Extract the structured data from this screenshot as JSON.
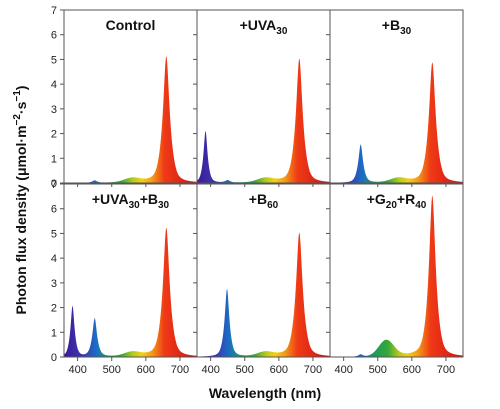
{
  "figure": {
    "xlabel": "Wavelength (nm)",
    "ylabel_parts": [
      "Photon flux density (μmol·m",
      "−2",
      "·s",
      "−1",
      ")"
    ]
  },
  "chart_data": {
    "type": "area",
    "layout": "2 rows x 3 columns of small multiples, shared axes",
    "x_unit": "nm",
    "y_unit": "μmol·m−2·s−1",
    "xlim": [
      360,
      750
    ],
    "ylim": [
      0,
      7
    ],
    "x_ticks": [
      400,
      500,
      600,
      700
    ],
    "y_ticks": [
      0,
      1,
      2,
      3,
      4,
      5,
      6,
      7
    ],
    "fill": "spectral rainbow gradient (violet → blue → green → yellow → orange → red)",
    "grid": false,
    "panels": [
      {
        "title_parts": [
          {
            "t": "Control",
            "sub": false
          }
        ],
        "peaks": [
          {
            "nm": 450,
            "value": 0.1
          },
          {
            "nm": 560,
            "value": 0.15
          },
          {
            "nm": 660,
            "value": 5.1
          }
        ]
      },
      {
        "title_parts": [
          {
            "t": "+UVA",
            "sub": false
          },
          {
            "t": "30",
            "sub": true
          }
        ],
        "peaks": [
          {
            "nm": 385,
            "value": 2.1
          },
          {
            "nm": 450,
            "value": 0.1
          },
          {
            "nm": 560,
            "value": 0.15
          },
          {
            "nm": 660,
            "value": 5.0
          }
        ]
      },
      {
        "title_parts": [
          {
            "t": "+B",
            "sub": false
          },
          {
            "t": "30",
            "sub": true
          }
        ],
        "peaks": [
          {
            "nm": 450,
            "value": 1.55
          },
          {
            "nm": 560,
            "value": 0.15
          },
          {
            "nm": 660,
            "value": 4.85
          }
        ]
      },
      {
        "title_parts": [
          {
            "t": "+UVA",
            "sub": false
          },
          {
            "t": "30",
            "sub": true
          },
          {
            "t": "+B",
            "sub": false
          },
          {
            "t": "30",
            "sub": true
          }
        ],
        "peaks": [
          {
            "nm": 385,
            "value": 2.05
          },
          {
            "nm": 450,
            "value": 1.55
          },
          {
            "nm": 560,
            "value": 0.15
          },
          {
            "nm": 660,
            "value": 5.2
          }
        ]
      },
      {
        "title_parts": [
          {
            "t": "+B",
            "sub": false
          },
          {
            "t": "60",
            "sub": true
          }
        ],
        "peaks": [
          {
            "nm": 448,
            "value": 2.75
          },
          {
            "nm": 560,
            "value": 0.15
          },
          {
            "nm": 660,
            "value": 5.0
          }
        ]
      },
      {
        "title_parts": [
          {
            "t": "+G",
            "sub": false
          },
          {
            "t": "20",
            "sub": true
          },
          {
            "t": "+R",
            "sub": false
          },
          {
            "t": "40",
            "sub": true
          }
        ],
        "peaks": [
          {
            "nm": 450,
            "value": 0.1
          },
          {
            "nm": 525,
            "value": 0.65
          },
          {
            "nm": 660,
            "value": 6.5
          }
        ]
      }
    ]
  }
}
